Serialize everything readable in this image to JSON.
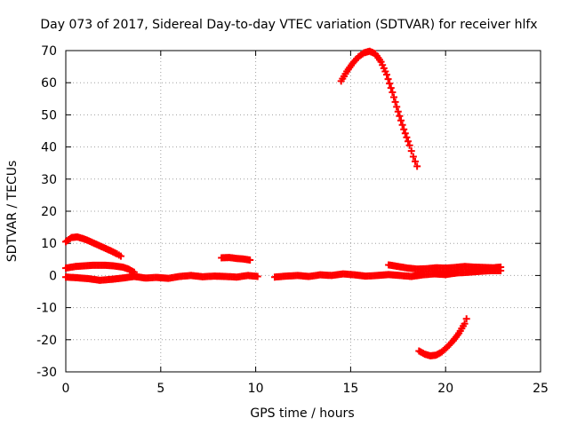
{
  "chart_data": {
    "type": "scatter",
    "title": "Day 073 of 2017, Sidereal Day-to-day VTEC variation (SDTVAR) for receiver hlfx",
    "xlabel": "GPS time / hours",
    "ylabel": "SDTVAR / TECUs",
    "xlim": [
      0,
      25
    ],
    "ylim": [
      -30,
      70
    ],
    "x_ticks": [
      0,
      5,
      10,
      15,
      20,
      25
    ],
    "y_ticks": [
      -30,
      -20,
      -10,
      0,
      10,
      20,
      30,
      40,
      50,
      60,
      70
    ],
    "grid": true,
    "legend": "none",
    "marker_color": "#ff0000",
    "series": [
      {
        "x": [
          0.0,
          0.3,
          0.6,
          0.9,
          1.2,
          1.5,
          1.8,
          2.1,
          2.4,
          2.7,
          2.9
        ],
        "y": [
          10.5,
          11.8,
          12.0,
          11.5,
          10.8,
          10.0,
          9.2,
          8.4,
          7.6,
          6.7,
          6.0
        ]
      },
      {
        "x": [
          0.0,
          0.5,
          1.0,
          1.5,
          2.0,
          2.5,
          3.0,
          3.3,
          3.6
        ],
        "y": [
          2.3,
          2.8,
          3.0,
          3.2,
          3.2,
          3.0,
          2.6,
          2.0,
          1.0
        ]
      },
      {
        "x": [
          0.0,
          0.6,
          1.2,
          1.8,
          2.4,
          3.0,
          3.6,
          4.2,
          4.8,
          5.4,
          6.0,
          6.6,
          7.2,
          7.8,
          8.4,
          9.0,
          9.6,
          10.1
        ],
        "y": [
          -0.5,
          -0.7,
          -1.0,
          -1.5,
          -1.2,
          -0.8,
          -0.3,
          -0.8,
          -0.6,
          -0.9,
          -0.3,
          0.0,
          -0.4,
          -0.2,
          -0.3,
          -0.5,
          0.0,
          -0.3
        ]
      },
      {
        "x": [
          8.2,
          8.6,
          9.0,
          9.4,
          9.7
        ],
        "y": [
          5.5,
          5.6,
          5.3,
          5.1,
          4.8
        ]
      },
      {
        "x": [
          11.0,
          11.6,
          12.2,
          12.8,
          13.4,
          14.0,
          14.6,
          15.2,
          15.8,
          16.4,
          17.0,
          17.6,
          18.2,
          18.8,
          19.4,
          20.0,
          20.6,
          21.2,
          21.8,
          22.4,
          22.9
        ],
        "y": [
          -0.5,
          -0.2,
          0.0,
          -0.3,
          0.2,
          0.0,
          0.5,
          0.2,
          -0.2,
          0.0,
          0.3,
          0.0,
          -0.3,
          0.2,
          0.5,
          0.3,
          0.8,
          1.0,
          1.3,
          1.5,
          1.5
        ]
      },
      {
        "x": [
          17.0,
          17.5,
          18.0,
          18.5,
          19.0,
          19.5,
          20.0,
          20.5,
          21.0,
          21.5,
          22.0,
          22.5,
          22.9
        ],
        "y": [
          3.3,
          2.8,
          2.3,
          2.0,
          2.1,
          2.4,
          2.3,
          2.5,
          2.8,
          2.6,
          2.5,
          2.4,
          2.6
        ]
      },
      {
        "x": [
          14.5,
          14.8,
          15.1,
          15.4,
          15.7,
          16.0,
          16.3,
          16.6,
          16.9,
          17.2,
          17.5,
          17.8,
          18.1,
          18.3,
          18.5
        ],
        "y": [
          60.5,
          63.5,
          66.0,
          68.0,
          69.3,
          69.8,
          69.0,
          66.5,
          62.5,
          57.0,
          51.0,
          45.5,
          40.5,
          37.0,
          34.0
        ]
      },
      {
        "x": [
          18.6,
          18.9,
          19.2,
          19.5,
          19.8,
          20.1,
          20.4,
          20.7,
          21.0,
          21.1
        ],
        "y": [
          -23.5,
          -24.5,
          -25.0,
          -24.8,
          -23.8,
          -22.2,
          -20.3,
          -18.0,
          -15.0,
          -13.5
        ]
      }
    ]
  }
}
